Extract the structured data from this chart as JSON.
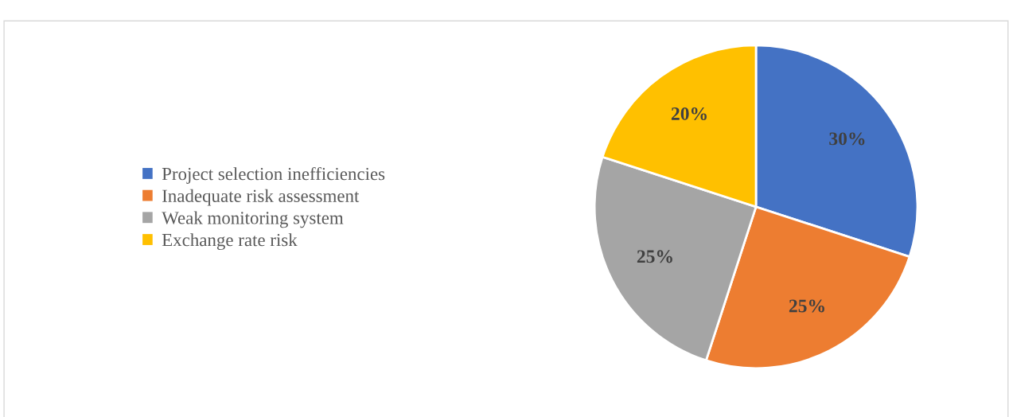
{
  "chart_data": {
    "type": "pie",
    "categories": [
      "Project selection inefficiencies",
      "Inadequate risk assessment",
      "Weak monitoring system",
      "Exchange rate risk"
    ],
    "values": [
      30,
      25,
      25,
      20
    ],
    "colors": [
      "#4472c4",
      "#ed7d31",
      "#a5a5a5",
      "#ffc000"
    ],
    "value_labels": [
      "30%",
      "25%",
      "25%",
      "20%"
    ],
    "legend": "left"
  }
}
